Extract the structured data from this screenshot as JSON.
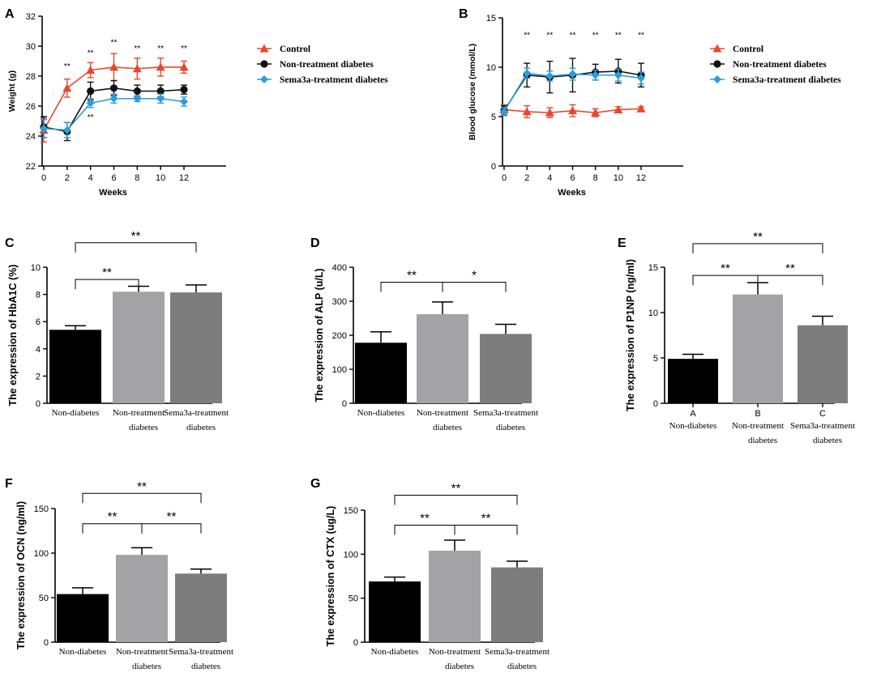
{
  "colors": {
    "control": "#e8472f",
    "nontreat": "#111111",
    "sema": "#2a9ed8",
    "bar_nondiabetes": "#000000",
    "bar_nontreat": "#a3a3a6",
    "bar_sema": "#7d7d7d",
    "axis": "#000000"
  },
  "chart_data": [
    {
      "panel": "A",
      "type": "line",
      "xlabel": "Weeks",
      "ylabel": "Weight (g)",
      "x": [
        0,
        2,
        4,
        6,
        8,
        10,
        12
      ],
      "xlim": [
        0,
        12
      ],
      "ylim": [
        22,
        32
      ],
      "yticks": [
        22,
        24,
        26,
        28,
        30,
        32
      ],
      "legend_position": "right",
      "series": [
        {
          "name": "Control",
          "key": "control",
          "marker": "triangle",
          "values": [
            24.4,
            27.2,
            28.4,
            28.6,
            28.5,
            28.6,
            28.6
          ],
          "errors": [
            0.8,
            0.6,
            0.5,
            0.9,
            0.7,
            0.6,
            0.4
          ]
        },
        {
          "name": "Non-treatment diabetes",
          "key": "nontreat",
          "marker": "circle",
          "values": [
            24.6,
            24.3,
            27.0,
            27.2,
            27.0,
            27.0,
            27.1
          ],
          "errors": [
            0.7,
            0.6,
            0.6,
            0.5,
            0.4,
            0.4,
            0.3
          ]
        },
        {
          "name": "Sema3a-treatment diabetes",
          "key": "sema",
          "marker": "diamond",
          "values": [
            24.5,
            24.4,
            26.2,
            26.5,
            26.5,
            26.5,
            26.3
          ],
          "errors": [
            0.6,
            0.5,
            0.3,
            0.3,
            0.2,
            0.3,
            0.3
          ]
        }
      ],
      "annotations": [
        {
          "x": 2,
          "y": 28.7,
          "text": "**"
        },
        {
          "x": 4,
          "y": 29.6,
          "text": "**"
        },
        {
          "x": 6,
          "y": 30.3,
          "text": "**"
        },
        {
          "x": 8,
          "y": 29.9,
          "text": "**"
        },
        {
          "x": 10,
          "y": 29.9,
          "text": "**"
        },
        {
          "x": 12,
          "y": 29.9,
          "text": "**"
        },
        {
          "x": 4,
          "y": 25.3,
          "text": "**"
        }
      ]
    },
    {
      "panel": "B",
      "type": "line",
      "xlabel": "Weeks",
      "ylabel": "Blood glucose (mmol/L)",
      "x": [
        0,
        2,
        4,
        6,
        8,
        10,
        12
      ],
      "xlim": [
        0,
        12
      ],
      "ylim": [
        0,
        15
      ],
      "yticks": [
        0,
        5,
        10,
        15
      ],
      "legend_position": "right",
      "series": [
        {
          "name": "Control",
          "key": "control",
          "marker": "triangle",
          "values": [
            5.7,
            5.5,
            5.4,
            5.6,
            5.4,
            5.7,
            5.8
          ],
          "errors": [
            0.5,
            0.6,
            0.5,
            0.6,
            0.4,
            0.3,
            0.2
          ]
        },
        {
          "name": "Non-treatment diabetes",
          "key": "nontreat",
          "marker": "circle",
          "values": [
            5.6,
            9.2,
            9.0,
            9.2,
            9.5,
            9.6,
            9.2
          ],
          "errors": [
            0.5,
            1.2,
            1.6,
            1.7,
            0.8,
            1.2,
            1.2
          ]
        },
        {
          "name": "Sema3a-treatment diabetes",
          "key": "sema",
          "marker": "diamond",
          "values": [
            5.5,
            9.4,
            9.1,
            9.3,
            9.2,
            9.2,
            8.9
          ],
          "errors": [
            0.4,
            0.5,
            0.5,
            0.6,
            0.5,
            0.6,
            0.6
          ]
        }
      ],
      "annotations": [
        {
          "x": 2,
          "y": 13.3,
          "text": "**"
        },
        {
          "x": 4,
          "y": 13.3,
          "text": "**"
        },
        {
          "x": 6,
          "y": 13.3,
          "text": "**"
        },
        {
          "x": 8,
          "y": 13.3,
          "text": "**"
        },
        {
          "x": 10,
          "y": 13.3,
          "text": "**"
        },
        {
          "x": 12,
          "y": 13.3,
          "text": "**"
        }
      ]
    },
    {
      "panel": "C",
      "type": "bar",
      "ylabel": "The expression of HbA1C (%)",
      "ylim": [
        0,
        10
      ],
      "yticks": [
        0,
        2,
        4,
        6,
        8,
        10
      ],
      "categories": [
        {
          "line1": "Non-diabetes",
          "line2": ""
        },
        {
          "line1": "Non-treatment",
          "line2": "diabetes"
        },
        {
          "line1": "Sema3a-treatment",
          "line2": "diabetes"
        }
      ],
      "values": [
        5.4,
        8.2,
        8.15
      ],
      "errors": [
        0.3,
        0.4,
        0.55
      ],
      "brackets": [
        {
          "from": 0,
          "to": 1,
          "y": 9.1,
          "text": "**"
        },
        {
          "from": 0,
          "to": 2,
          "y": 11.8,
          "text": "**"
        }
      ]
    },
    {
      "panel": "D",
      "type": "bar",
      "ylabel": "The expression of ALP (u/L)",
      "ylim": [
        0,
        400
      ],
      "yticks": [
        0,
        100,
        200,
        300,
        400
      ],
      "categories": [
        {
          "line1": "Non-diabetes",
          "line2": ""
        },
        {
          "line1": "Non-treatment",
          "line2": "diabetes"
        },
        {
          "line1": "Sema3a-treatment",
          "line2": "diabetes"
        }
      ],
      "values": [
        178,
        262,
        204
      ],
      "errors": [
        32,
        36,
        28
      ],
      "brackets": [
        {
          "from": 0,
          "to": 1,
          "y": 356,
          "text": "**"
        },
        {
          "from": 1,
          "to": 2,
          "y": 356,
          "text": "*"
        }
      ]
    },
    {
      "panel": "E",
      "type": "bar",
      "ylabel": "The expression of P1NP (ng/ml)",
      "ylim": [
        0,
        15
      ],
      "yticks": [
        0,
        5,
        10,
        15
      ],
      "tick_letters": [
        "A",
        "B",
        "C"
      ],
      "categories": [
        {
          "line1": "Non-diabetes",
          "line2": ""
        },
        {
          "line1": "Non-treatment",
          "line2": "diabetes"
        },
        {
          "line1": "Sema3a-treatment",
          "line2": "diabetes"
        }
      ],
      "values": [
        4.9,
        12.0,
        8.6
      ],
      "errors": [
        0.5,
        1.3,
        1.0
      ],
      "brackets": [
        {
          "from": 0,
          "to": 1,
          "y": 14.1,
          "text": "**"
        },
        {
          "from": 1,
          "to": 2,
          "y": 14.1,
          "text": "**"
        },
        {
          "from": 0,
          "to": 2,
          "y": 17.6,
          "text": "**"
        }
      ]
    },
    {
      "panel": "F",
      "type": "bar",
      "ylabel": "The expression of OCN (ng/ml)",
      "ylim": [
        0,
        150
      ],
      "yticks": [
        0,
        50,
        100,
        150
      ],
      "categories": [
        {
          "line1": "Non-diabetes",
          "line2": ""
        },
        {
          "line1": "Non-treatment",
          "line2": "diabetes"
        },
        {
          "line1": "Sema3a-treatment",
          "line2": "diabetes"
        }
      ],
      "values": [
        54,
        98,
        77
      ],
      "errors": [
        7,
        8,
        5
      ],
      "brackets": [
        {
          "from": 0,
          "to": 1,
          "y": 133,
          "text": "**"
        },
        {
          "from": 1,
          "to": 2,
          "y": 133,
          "text": "**"
        },
        {
          "from": 0,
          "to": 2,
          "y": 167,
          "text": "**"
        }
      ]
    },
    {
      "panel": "G",
      "type": "bar",
      "ylabel": "The expression of CTX (ug/L)",
      "ylim": [
        0,
        150
      ],
      "yticks": [
        0,
        50,
        100,
        150
      ],
      "categories": [
        {
          "line1": "Non-diabetes",
          "line2": ""
        },
        {
          "line1": "Non-treatment",
          "line2": "diabetes"
        },
        {
          "line1": "Sema3a-treatment",
          "line2": "diabetes"
        }
      ],
      "values": [
        69,
        104,
        85
      ],
      "errors": [
        5,
        12,
        7
      ],
      "brackets": [
        {
          "from": 0,
          "to": 1,
          "y": 133,
          "text": "**"
        },
        {
          "from": 1,
          "to": 2,
          "y": 133,
          "text": "**"
        },
        {
          "from": 0,
          "to": 2,
          "y": 167,
          "text": "**"
        }
      ]
    }
  ]
}
